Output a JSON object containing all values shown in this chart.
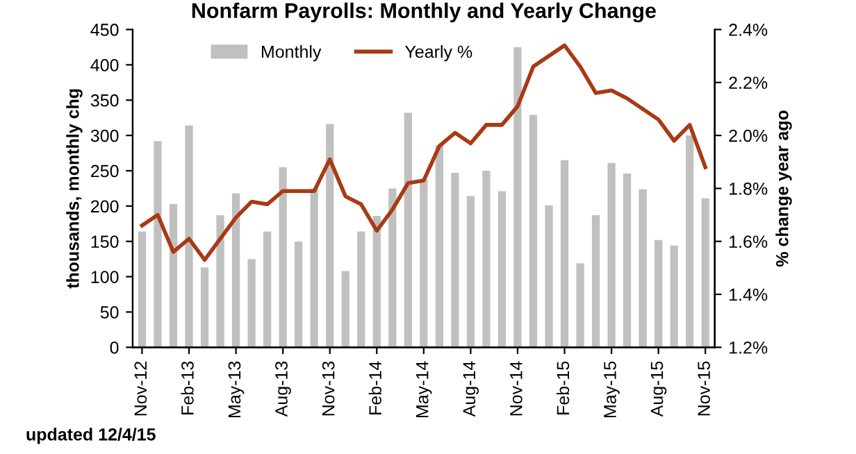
{
  "chart_data": {
    "type": "bar",
    "title": "Nonfarm Payrolls: Monthly and Yearly Change",
    "ylabel": "thousands, monthly chg",
    "y2label": "% change year ago",
    "categories": [
      "Nov-12",
      null,
      null,
      "Feb-13",
      null,
      null,
      "May-13",
      null,
      null,
      "Aug-13",
      null,
      null,
      "Nov-13",
      null,
      null,
      "Feb-14",
      null,
      null,
      "May-14",
      null,
      null,
      "Aug-14",
      null,
      null,
      "Nov-14",
      null,
      null,
      "Feb-15",
      null,
      null,
      "May-15",
      null,
      null,
      "Aug-15",
      null,
      null,
      "Nov-15"
    ],
    "series": [
      {
        "name": "Monthly",
        "color": "#c0c0c0",
        "values": [
          164,
          292,
          203,
          314,
          113,
          187,
          218,
          125,
          164,
          255,
          150,
          225,
          316,
          108,
          164,
          186,
          225,
          332,
          238,
          286,
          247,
          214,
          250,
          221,
          425,
          329,
          201,
          265,
          119,
          187,
          261,
          246,
          224,
          152,
          144,
          300,
          211
        ]
      },
      {
        "name": "Yearly %",
        "type": "line",
        "axis": "y2",
        "color": "#a83a14",
        "values": [
          1.66,
          1.7,
          1.56,
          1.61,
          1.53,
          1.61,
          1.69,
          1.75,
          1.74,
          1.79,
          1.79,
          1.79,
          1.91,
          1.77,
          1.74,
          1.64,
          1.72,
          1.82,
          1.83,
          1.96,
          2.01,
          1.97,
          2.04,
          2.04,
          2.11,
          2.26,
          2.3,
          2.34,
          2.26,
          2.16,
          2.17,
          2.14,
          2.1,
          2.06,
          1.98,
          2.04,
          1.88
        ]
      }
    ],
    "ylim": [
      0,
      450
    ],
    "yticks": [
      0,
      50,
      100,
      150,
      200,
      250,
      300,
      350,
      400,
      450
    ],
    "y2lim": [
      1.2,
      2.4
    ],
    "y2ticks": [
      {
        "value": 1.2,
        "label": "1.2%"
      },
      {
        "value": 1.4,
        "label": "1.4%"
      },
      {
        "value": 1.6,
        "label": "1.6%"
      },
      {
        "value": 1.8,
        "label": "1.8%"
      },
      {
        "value": 2.0,
        "label": "2.0%"
      },
      {
        "value": 2.2,
        "label": "2.2%"
      },
      {
        "value": 2.4,
        "label": "2.4%"
      }
    ],
    "legend": "top",
    "grid": false,
    "annotations": [
      "updated 12/4/15"
    ]
  }
}
